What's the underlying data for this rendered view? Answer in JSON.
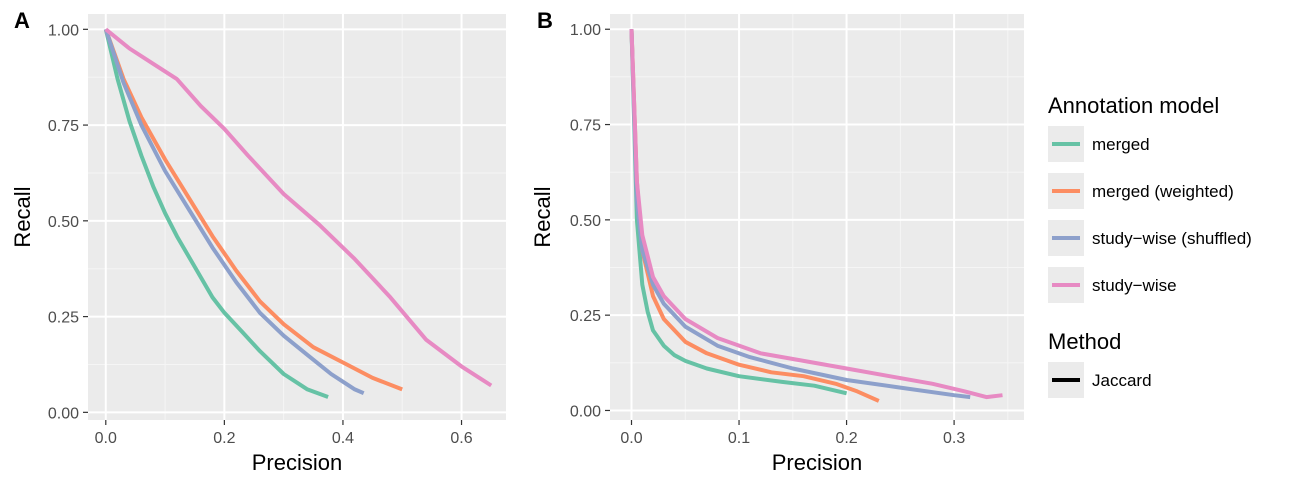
{
  "panels": [
    {
      "label": "A"
    },
    {
      "label": "B"
    }
  ],
  "legend": {
    "title": "Annotation model",
    "items": [
      {
        "label": "merged",
        "color": "#66c2a5"
      },
      {
        "label": "merged (weighted)",
        "color": "#fc8d62"
      },
      {
        "label": "study−wise (shuffled)",
        "color": "#8da0cb"
      },
      {
        "label": "study−wise",
        "color": "#e78ac3"
      }
    ],
    "method_title": "Method",
    "method_items": [
      {
        "label": "Jaccard",
        "color": "#000000"
      }
    ]
  },
  "chart_data": [
    {
      "type": "line",
      "panel": "A",
      "xlabel": "Precision",
      "ylabel": "Recall",
      "xlim": [
        -0.03,
        0.675
      ],
      "ylim": [
        -0.02,
        1.04
      ],
      "xticks": [
        0.0,
        0.2,
        0.4,
        0.6
      ],
      "xtick_labels": [
        "0.0",
        "0.2",
        "0.4",
        "0.6"
      ],
      "yticks": [
        0.0,
        0.25,
        0.5,
        0.75,
        1.0
      ],
      "ytick_labels": [
        "0.00",
        "0.25",
        "0.50",
        "0.75",
        "1.00"
      ],
      "grid": true,
      "series": [
        {
          "name": "merged",
          "color": "#66c2a5",
          "x": [
            0.0,
            0.02,
            0.04,
            0.06,
            0.08,
            0.1,
            0.12,
            0.15,
            0.18,
            0.2,
            0.23,
            0.26,
            0.3,
            0.34,
            0.375
          ],
          "y": [
            1.0,
            0.87,
            0.76,
            0.67,
            0.59,
            0.52,
            0.46,
            0.38,
            0.3,
            0.26,
            0.21,
            0.16,
            0.1,
            0.06,
            0.04
          ]
        },
        {
          "name": "merged (weighted)",
          "color": "#fc8d62",
          "x": [
            0.0,
            0.03,
            0.06,
            0.1,
            0.14,
            0.18,
            0.22,
            0.26,
            0.3,
            0.35,
            0.4,
            0.45,
            0.5
          ],
          "y": [
            1.0,
            0.87,
            0.77,
            0.66,
            0.56,
            0.46,
            0.37,
            0.29,
            0.23,
            0.17,
            0.13,
            0.09,
            0.06
          ]
        },
        {
          "name": "study−wise (shuffled)",
          "color": "#8da0cb",
          "x": [
            0.0,
            0.03,
            0.06,
            0.1,
            0.14,
            0.18,
            0.22,
            0.26,
            0.3,
            0.34,
            0.38,
            0.42,
            0.435
          ],
          "y": [
            1.0,
            0.86,
            0.75,
            0.63,
            0.53,
            0.43,
            0.34,
            0.26,
            0.2,
            0.15,
            0.1,
            0.06,
            0.05
          ]
        },
        {
          "name": "study−wise",
          "color": "#e78ac3",
          "x": [
            0.0,
            0.04,
            0.08,
            0.12,
            0.16,
            0.2,
            0.24,
            0.3,
            0.36,
            0.42,
            0.48,
            0.54,
            0.6,
            0.65
          ],
          "y": [
            1.0,
            0.95,
            0.91,
            0.87,
            0.8,
            0.74,
            0.67,
            0.57,
            0.49,
            0.4,
            0.3,
            0.19,
            0.12,
            0.07
          ]
        }
      ]
    },
    {
      "type": "line",
      "panel": "B",
      "xlabel": "Precision",
      "ylabel": "Recall",
      "xlim": [
        -0.02,
        0.365
      ],
      "ylim": [
        -0.025,
        1.04
      ],
      "xticks": [
        0.0,
        0.1,
        0.2,
        0.3
      ],
      "xtick_labels": [
        "0.0",
        "0.1",
        "0.2",
        "0.3"
      ],
      "yticks": [
        0.0,
        0.25,
        0.5,
        0.75,
        1.0
      ],
      "ytick_labels": [
        "0.00",
        "0.25",
        "0.50",
        "0.75",
        "1.00"
      ],
      "grid": true,
      "series": [
        {
          "name": "merged",
          "color": "#66c2a5",
          "x": [
            0.0,
            0.005,
            0.01,
            0.015,
            0.02,
            0.03,
            0.04,
            0.05,
            0.07,
            0.1,
            0.14,
            0.17,
            0.2
          ],
          "y": [
            1.0,
            0.5,
            0.33,
            0.26,
            0.21,
            0.17,
            0.145,
            0.13,
            0.11,
            0.09,
            0.075,
            0.065,
            0.045
          ]
        },
        {
          "name": "merged (weighted)",
          "color": "#fc8d62",
          "x": [
            0.0,
            0.005,
            0.01,
            0.02,
            0.03,
            0.05,
            0.07,
            0.1,
            0.13,
            0.16,
            0.19,
            0.21,
            0.23
          ],
          "y": [
            1.0,
            0.6,
            0.42,
            0.3,
            0.24,
            0.18,
            0.15,
            0.12,
            0.1,
            0.09,
            0.07,
            0.05,
            0.025
          ]
        },
        {
          "name": "study−wise (shuffled)",
          "color": "#8da0cb",
          "x": [
            0.0,
            0.005,
            0.01,
            0.02,
            0.03,
            0.05,
            0.08,
            0.11,
            0.15,
            0.2,
            0.25,
            0.3,
            0.315
          ],
          "y": [
            1.0,
            0.55,
            0.42,
            0.33,
            0.28,
            0.22,
            0.17,
            0.14,
            0.11,
            0.08,
            0.06,
            0.04,
            0.035
          ]
        },
        {
          "name": "study−wise",
          "color": "#e78ac3",
          "x": [
            0.0,
            0.005,
            0.01,
            0.02,
            0.03,
            0.05,
            0.08,
            0.12,
            0.16,
            0.2,
            0.24,
            0.28,
            0.31,
            0.33,
            0.345
          ],
          "y": [
            1.0,
            0.6,
            0.46,
            0.35,
            0.3,
            0.24,
            0.19,
            0.15,
            0.13,
            0.11,
            0.09,
            0.07,
            0.05,
            0.035,
            0.04
          ]
        }
      ]
    }
  ]
}
